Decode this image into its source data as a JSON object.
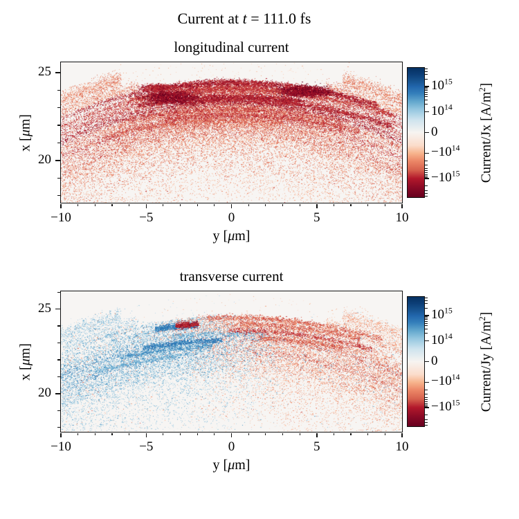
{
  "figure_title": {
    "pre": "Current at ",
    "var": "t",
    "post": " = 111.0 fs"
  },
  "colors": {
    "plot_bg": "#f7f5f3",
    "frame": "#111111",
    "text": "#000000",
    "red_palette": [
      "#fddbc7",
      "#f9c3a8",
      "#f4a582",
      "#ea8365",
      "#d6604d",
      "#c53e3d",
      "#b2182b",
      "#8d0d26",
      "#67001f"
    ],
    "blue_palette": [
      "#d1e5f0",
      "#b3d5e7",
      "#92c5de",
      "#6bacd1",
      "#4393c3",
      "#2e7ab6",
      "#2166ac",
      "#114781",
      "#053061"
    ],
    "colorbar_gradient": [
      {
        "p": 0,
        "c": "#053061"
      },
      {
        "p": 5,
        "c": "#0c3e77"
      },
      {
        "p": 10,
        "c": "#17538f"
      },
      {
        "p": 14.5,
        "c": "#2166ac"
      },
      {
        "p": 20,
        "c": "#3580bb"
      },
      {
        "p": 26,
        "c": "#62a7cd"
      },
      {
        "p": 32,
        "c": "#93c6df"
      },
      {
        "p": 40,
        "c": "#cde3ee"
      },
      {
        "p": 50,
        "c": "#f7f4f1"
      },
      {
        "p": 60,
        "c": "#fbdccb"
      },
      {
        "p": 66,
        "c": "#f7b48d"
      },
      {
        "p": 72,
        "c": "#ec8767"
      },
      {
        "p": 79,
        "c": "#d6604d"
      },
      {
        "p": 85.5,
        "c": "#b2182b"
      },
      {
        "p": 92,
        "c": "#8d0b26"
      },
      {
        "p": 100,
        "c": "#67001f"
      }
    ]
  },
  "chart_data": [
    {
      "type": "scatter",
      "title": "longitudinal current",
      "xlabel": {
        "pre": "y [",
        "mu": "μ",
        "post": "m]"
      },
      "ylabel": {
        "pre": "x [",
        "mu": "μ",
        "post": "m]"
      },
      "xlim": [
        -10,
        10
      ],
      "ylim": [
        17.6,
        25.58
      ],
      "xticks": [
        {
          "v": -10,
          "l": "−10"
        },
        {
          "v": -5,
          "l": "−5"
        },
        {
          "v": 0,
          "l": "0"
        },
        {
          "v": 5,
          "l": "5"
        },
        {
          "v": 10,
          "l": "10"
        }
      ],
      "yticks": [
        {
          "v": 20,
          "l": "20"
        },
        {
          "v": 25,
          "l": "25"
        }
      ],
      "minor_step": 1,
      "colorbar": {
        "label": {
          "pre": "Current/Jx [A/m",
          "sup": "2",
          "post": "]"
        },
        "ticks": [
          {
            "l": "10",
            "e": "15",
            "neg": false,
            "f": 0.145
          },
          {
            "l": "10",
            "e": "14",
            "neg": false,
            "f": 0.34
          },
          {
            "l": "0",
            "e": null,
            "neg": false,
            "f": 0.5
          },
          {
            "l": "10",
            "e": "14",
            "neg": true,
            "f": 0.66
          },
          {
            "l": "10",
            "e": "15",
            "neg": true,
            "f": 0.855
          }
        ],
        "minor_f": [
          0.009,
          0.028,
          0.052,
          0.086,
          0.154,
          0.164,
          0.175,
          0.188,
          0.204,
          0.223,
          0.247,
          0.281
        ],
        "scale": "symlog"
      },
      "shell": {
        "comment": "expanding shell arcs centered at y=0,x=0; values in micron; sign=all-negative-Jx (red)",
        "palette": "red",
        "seed": 42,
        "bands": [
          {
            "r": 25.45,
            "s": 0.25,
            "n": 2200,
            "shade": 3,
            "flank": 6.5
          },
          {
            "r": 24.8,
            "s": 0.2,
            "n": 1600,
            "shade": 3,
            "flank": 5.5
          },
          {
            "r": 24.5,
            "s": 0.08,
            "n": 2600,
            "shade": 6,
            "boost": 2
          },
          {
            "r": 24.1,
            "s": 0.15,
            "n": 5200,
            "shade": 5,
            "boost": 2
          },
          {
            "r": 23.7,
            "s": 0.14,
            "n": 4600,
            "shade": 5,
            "boost": 2
          },
          {
            "r": 23.3,
            "s": 0.15,
            "n": 5200,
            "shade": 6,
            "boost": 2
          },
          {
            "r": 22.9,
            "s": 0.16,
            "n": 4200,
            "shade": 4,
            "boost": 1.5
          },
          {
            "r": 22.5,
            "s": 0.16,
            "n": 4600,
            "shade": 5,
            "boost": 1.5
          },
          {
            "r": 22.05,
            "s": 0.18,
            "n": 3600,
            "shade": 4,
            "boost": 1
          },
          {
            "r": 21.6,
            "s": 0.2,
            "n": 3000,
            "shade": 4
          },
          {
            "r": 21.1,
            "s": 0.22,
            "n": 2400,
            "shade": 3
          },
          {
            "r": 20.5,
            "s": 0.26,
            "n": 2000,
            "shade": 3
          },
          {
            "r": 19.8,
            "s": 0.3,
            "n": 1500,
            "shade": 3
          },
          {
            "r": 19.0,
            "s": 0.35,
            "n": 1100,
            "shade": 2
          },
          {
            "r": 18.3,
            "s": 0.4,
            "n": 800,
            "shade": 2
          },
          {
            "r": 23.0,
            "s": 0.55,
            "n": 2600,
            "shade": 1,
            "boost": 2
          },
          {
            "r": 22.0,
            "s": 0.5,
            "n": 2000,
            "shade": 1,
            "boost": 1
          }
        ],
        "streaks": [
          {
            "y0": -4.5,
            "y1": 8.5,
            "x": 24.32,
            "n": 1800,
            "shade": 6,
            "w": 3
          },
          {
            "y0": -6,
            "y1": 9.5,
            "x": 24.02,
            "n": 1500,
            "shade": 5,
            "w": 3
          },
          {
            "y0": -5.5,
            "y1": 4,
            "x": 23.62,
            "n": 1300,
            "shade": 6,
            "w": 3
          },
          {
            "y0": -3,
            "y1": 9.3,
            "x": 23.28,
            "n": 1400,
            "shade": 6,
            "w": 3
          },
          {
            "y0": -6.5,
            "y1": 6.5,
            "x": 22.92,
            "n": 1100,
            "shade": 5,
            "w": 2
          },
          {
            "y0": -4,
            "y1": 7.5,
            "x": 22.55,
            "n": 1100,
            "shade": 5,
            "w": 2
          },
          {
            "y0": -7.5,
            "y1": 3,
            "x": 22.2,
            "n": 800,
            "shade": 4,
            "w": 2
          }
        ],
        "blobs": [
          {
            "y": -3.6,
            "x": 23.6,
            "sy": 0.75,
            "sx": 0.17,
            "n": 2600,
            "shade": 7
          },
          {
            "y": 4.3,
            "x": 23.95,
            "sy": 0.7,
            "sx": 0.15,
            "n": 2300,
            "shade": 7
          },
          {
            "y": -4.4,
            "x": 24.15,
            "sy": 0.5,
            "sx": 0.1,
            "n": 900,
            "shade": 6
          }
        ],
        "noise": {
          "n": 1400,
          "shade": 1,
          "dark_n": 220
        }
      }
    },
    {
      "type": "scatter",
      "title": "transverse current",
      "xlabel": {
        "pre": "y [",
        "mu": "μ",
        "post": "m]"
      },
      "ylabel": {
        "pre": "x [",
        "mu": "μ",
        "post": "m]"
      },
      "xlim": [
        -10,
        10
      ],
      "ylim": [
        17.74,
        26.05
      ],
      "xticks": [
        {
          "v": -10,
          "l": "−10"
        },
        {
          "v": -5,
          "l": "−5"
        },
        {
          "v": 0,
          "l": "0"
        },
        {
          "v": 5,
          "l": "5"
        },
        {
          "v": 10,
          "l": "10"
        }
      ],
      "yticks": [
        {
          "v": 20,
          "l": "20"
        },
        {
          "v": 25,
          "l": "25"
        }
      ],
      "minor_step": 1,
      "colorbar": {
        "label": {
          "pre": "Current/Jy [A/m",
          "sup": "2",
          "post": "]"
        },
        "ticks": [
          {
            "l": "10",
            "e": "15",
            "neg": false,
            "f": 0.145
          },
          {
            "l": "10",
            "e": "14",
            "neg": false,
            "f": 0.34
          },
          {
            "l": "0",
            "e": null,
            "neg": false,
            "f": 0.5
          },
          {
            "l": "10",
            "e": "14",
            "neg": true,
            "f": 0.66
          },
          {
            "l": "10",
            "e": "15",
            "neg": true,
            "f": 0.855
          }
        ],
        "minor_f": [
          0.009,
          0.028,
          0.052,
          0.086,
          0.154,
          0.164,
          0.175,
          0.188,
          0.204,
          0.223,
          0.247,
          0.281
        ],
        "scale": "symlog"
      },
      "shell": {
        "comment": "same shell; Jy positive(blue) on left, negative(red) on right, mixed near axis",
        "palette": "split",
        "seed": 1337,
        "split": {
          "top_r": 23.5,
          "y0_top": -2.2,
          "y0": 0.2,
          "jitter": 3.0,
          "flip": 0.06
        },
        "bands": [
          {
            "r": 25.45,
            "s": 0.25,
            "n": 1500,
            "shade": 2,
            "flank": 6.5
          },
          {
            "r": 24.8,
            "s": 0.2,
            "n": 1100,
            "shade": 2,
            "flank": 5.5
          },
          {
            "r": 24.5,
            "s": 0.09,
            "n": 1500,
            "shade": 3,
            "boost": 1.5
          },
          {
            "r": 24.1,
            "s": 0.15,
            "n": 2600,
            "shade": 3,
            "boost": 1.5
          },
          {
            "r": 23.7,
            "s": 0.14,
            "n": 2400,
            "shade": 3
          },
          {
            "r": 23.3,
            "s": 0.15,
            "n": 2600,
            "shade": 4
          },
          {
            "r": 22.9,
            "s": 0.16,
            "n": 2200,
            "shade": 3
          },
          {
            "r": 22.5,
            "s": 0.16,
            "n": 2400,
            "shade": 4
          },
          {
            "r": 22.05,
            "s": 0.18,
            "n": 2000,
            "shade": 3
          },
          {
            "r": 21.6,
            "s": 0.2,
            "n": 1700,
            "shade": 3
          },
          {
            "r": 21.1,
            "s": 0.22,
            "n": 1400,
            "shade": 2
          },
          {
            "r": 20.5,
            "s": 0.26,
            "n": 1200,
            "shade": 2
          },
          {
            "r": 19.8,
            "s": 0.3,
            "n": 900,
            "shade": 2
          },
          {
            "r": 19.0,
            "s": 0.35,
            "n": 700,
            "shade": 2
          },
          {
            "r": 18.3,
            "s": 0.4,
            "n": 500,
            "shade": 1
          },
          {
            "r": 23.0,
            "s": 0.55,
            "n": 1400,
            "shade": 1
          },
          {
            "r": 22.0,
            "s": 0.5,
            "n": 1100,
            "shade": 1
          }
        ],
        "streaks": [
          {
            "y0": -5.2,
            "y1": -0.6,
            "x": 23.02,
            "n": 900,
            "shade": 5,
            "w": 2,
            "side": "blue"
          },
          {
            "y0": -6.5,
            "y1": -1.2,
            "x": 22.6,
            "n": 700,
            "shade": 4,
            "w": 2,
            "side": "blue"
          },
          {
            "y0": -4.5,
            "y1": -2.0,
            "x": 23.98,
            "n": 800,
            "shade": 5,
            "w": 2,
            "side": "blue"
          },
          {
            "y0": -8,
            "y1": -3,
            "x": 21.9,
            "n": 500,
            "shade": 3,
            "w": 2,
            "side": "blue"
          },
          {
            "y0": -3.5,
            "y1": 2,
            "x": 23.55,
            "n": 450,
            "shade": 3,
            "w": 2,
            "side": "blue"
          },
          {
            "y0": -3.3,
            "y1": -2.0,
            "x": 24.08,
            "n": 500,
            "shade": 6,
            "w": 3,
            "side": "red"
          },
          {
            "y0": -1.5,
            "y1": 8.8,
            "x": 24.3,
            "n": 900,
            "shade": 4,
            "w": 2,
            "side": "red"
          },
          {
            "y0": 0.5,
            "y1": 7.5,
            "x": 23.9,
            "n": 700,
            "shade": 4,
            "w": 2,
            "side": "red"
          },
          {
            "y0": -0.2,
            "y1": 8.2,
            "x": 23.5,
            "n": 800,
            "shade": 5,
            "w": 2,
            "side": "red"
          },
          {
            "y0": 1.5,
            "y1": 6.5,
            "x": 23.1,
            "n": 500,
            "shade": 4,
            "w": 2,
            "side": "red"
          }
        ],
        "blobs": [],
        "noise": {
          "n": 1000,
          "shade": 1,
          "dark_n": 120
        }
      }
    }
  ]
}
